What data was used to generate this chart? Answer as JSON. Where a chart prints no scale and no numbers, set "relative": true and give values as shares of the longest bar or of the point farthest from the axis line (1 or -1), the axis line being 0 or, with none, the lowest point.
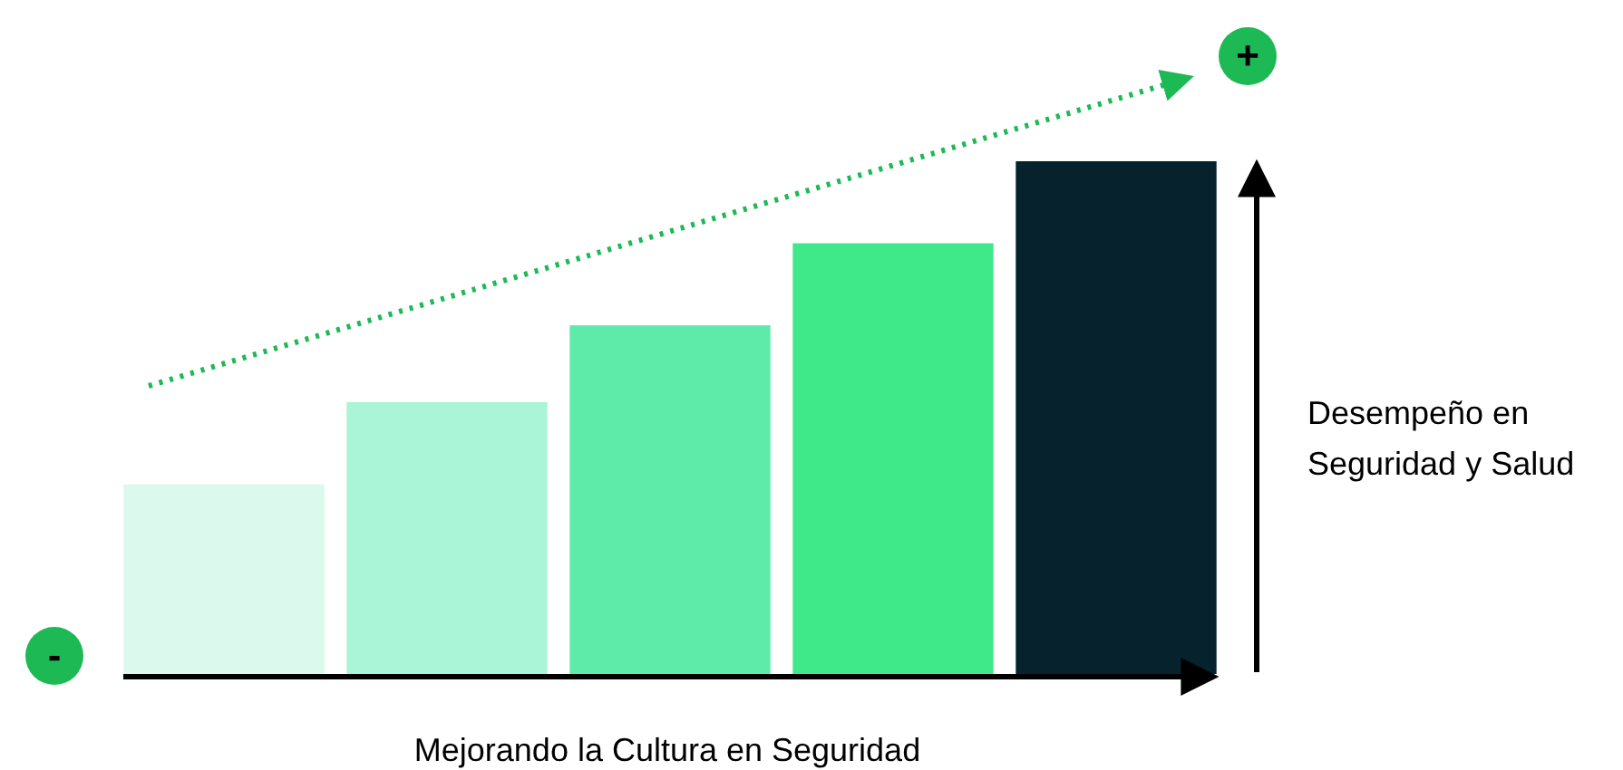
{
  "chart_data": {
    "type": "bar",
    "relative": true,
    "categories": [
      null,
      null,
      null,
      null,
      null
    ],
    "values": [
      0.37,
      0.53,
      0.68,
      0.84,
      1
    ],
    "colors": [
      "#dbf9ec",
      "#aaf4d7",
      "#5eeba9",
      "#3fe98a",
      "#06232d"
    ],
    "xlabel": "Mejorando la Cultura en Seguridad",
    "ylabel": "Desempeño en\nSeguridad y Salud",
    "annotations": [
      "+",
      "-"
    ]
  }
}
